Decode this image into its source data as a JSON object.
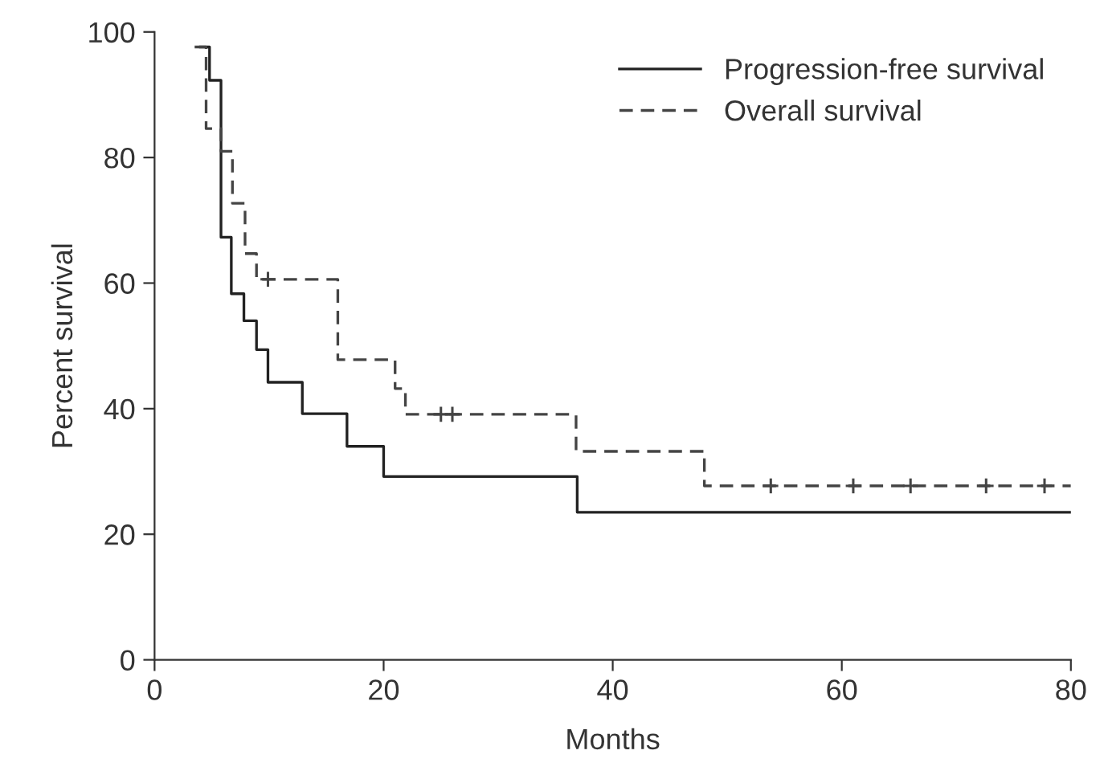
{
  "chart_data": {
    "type": "step",
    "xlabel": "Months",
    "ylabel": "Percent survival",
    "xlim": [
      0,
      80
    ],
    "ylim": [
      0,
      100
    ],
    "xticks": [
      0,
      20,
      40,
      60,
      80
    ],
    "yticks": [
      0,
      20,
      40,
      60,
      80,
      100
    ],
    "grid": false,
    "legend": "top right",
    "series": [
      {
        "name": "Progression-free survival",
        "color": "#222222",
        "line_style": "solid",
        "x": [
          4,
          4.8,
          5.8,
          6.7,
          7.8,
          8.9,
          9.9,
          12.9,
          16.8,
          20,
          36.9,
          80
        ],
        "values": [
          97.6,
          92.3,
          67.3,
          58.3,
          54,
          49.4,
          44.2,
          39.2,
          34,
          29.2,
          23.5,
          23.5
        ]
      },
      {
        "name": "Overall survival",
        "color": "#444444",
        "line_style": "dashed",
        "x": [
          3.5,
          4.5,
          5.8,
          6.8,
          7.9,
          8.9,
          16,
          21,
          21.9,
          36.8,
          48,
          80
        ],
        "values": [
          97.6,
          84.6,
          81,
          72.7,
          64.7,
          60.6,
          47.8,
          43.2,
          39.1,
          33.2,
          27.7,
          27.7
        ]
      },
      {
        "type": "scatter",
        "marker": "cross",
        "color": "#444444",
        "x": [
          9.9,
          25,
          26,
          53.8,
          61,
          66,
          72.6,
          77.7
        ],
        "values": [
          60.6,
          39.1,
          39.1,
          27.7,
          27.7,
          27.7,
          27.7,
          27.7
        ]
      }
    ]
  }
}
